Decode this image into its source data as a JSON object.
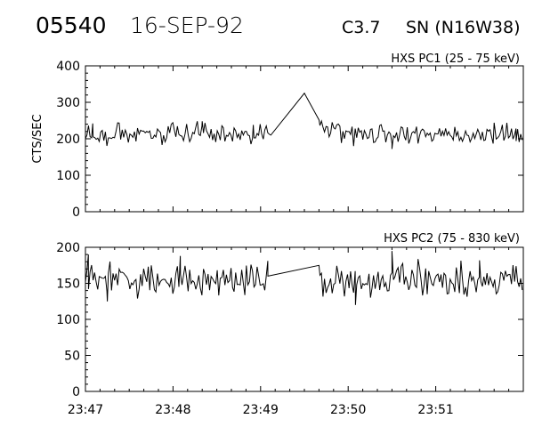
{
  "header": {
    "event_id": "05540",
    "date": "16-SEP-92",
    "flare_class": "C3.7",
    "location": "SN (N16W38)"
  },
  "chart_data": [
    {
      "type": "line",
      "title": "HXS PC1 (25 - 75 keV)",
      "ylabel": "CTS/SEC",
      "xlabel": "",
      "xlim": [
        "23:47",
        "23:52"
      ],
      "xticks": [
        "23:47",
        "23:48",
        "23:49",
        "23:50",
        "23:51"
      ],
      "ylim": [
        0,
        400
      ],
      "yticks": [
        0,
        100,
        200,
        300,
        400
      ],
      "gap": [
        "23:49:07",
        "23:49:40"
      ],
      "series": [
        {
          "baseline": 213,
          "noise": 18,
          "peak": {
            "time": "23:49:30",
            "value": 325
          },
          "notable": [
            {
              "time": "23:47:05",
              "value": 242
            },
            {
              "time": "23:48:20",
              "value": 248
            },
            {
              "time": "23:48:55",
              "value": 238
            },
            {
              "time": "23:49:07",
              "value": 210
            },
            {
              "time": "23:49:40",
              "value": 252
            },
            {
              "time": "23:50:30",
              "value": 172
            },
            {
              "time": "23:51:40",
              "value": 244
            },
            {
              "time": "23:51:55",
              "value": 228
            }
          ]
        }
      ]
    },
    {
      "type": "line",
      "title": "HXS PC2 (75 - 830 keV)",
      "ylabel": "",
      "xlabel": "",
      "xlim": [
        "23:47",
        "23:52"
      ],
      "xticks": [
        "23:47",
        "23:48",
        "23:49",
        "23:50",
        "23:51"
      ],
      "ylim": [
        0,
        200
      ],
      "yticks": [
        0,
        50,
        100,
        150,
        200
      ],
      "gap": [
        "23:49:05",
        "23:49:40"
      ],
      "series": [
        {
          "baseline": 155,
          "noise": 14,
          "notable": [
            {
              "time": "23:47:02",
              "value": 190
            },
            {
              "time": "23:47:15",
              "value": 125
            },
            {
              "time": "23:48:05",
              "value": 188
            },
            {
              "time": "23:49:05",
              "value": 160
            },
            {
              "time": "23:49:40",
              "value": 175
            },
            {
              "time": "23:50:05",
              "value": 120
            },
            {
              "time": "23:50:30",
              "value": 195
            },
            {
              "time": "23:51:30",
              "value": 182
            }
          ]
        }
      ]
    }
  ]
}
